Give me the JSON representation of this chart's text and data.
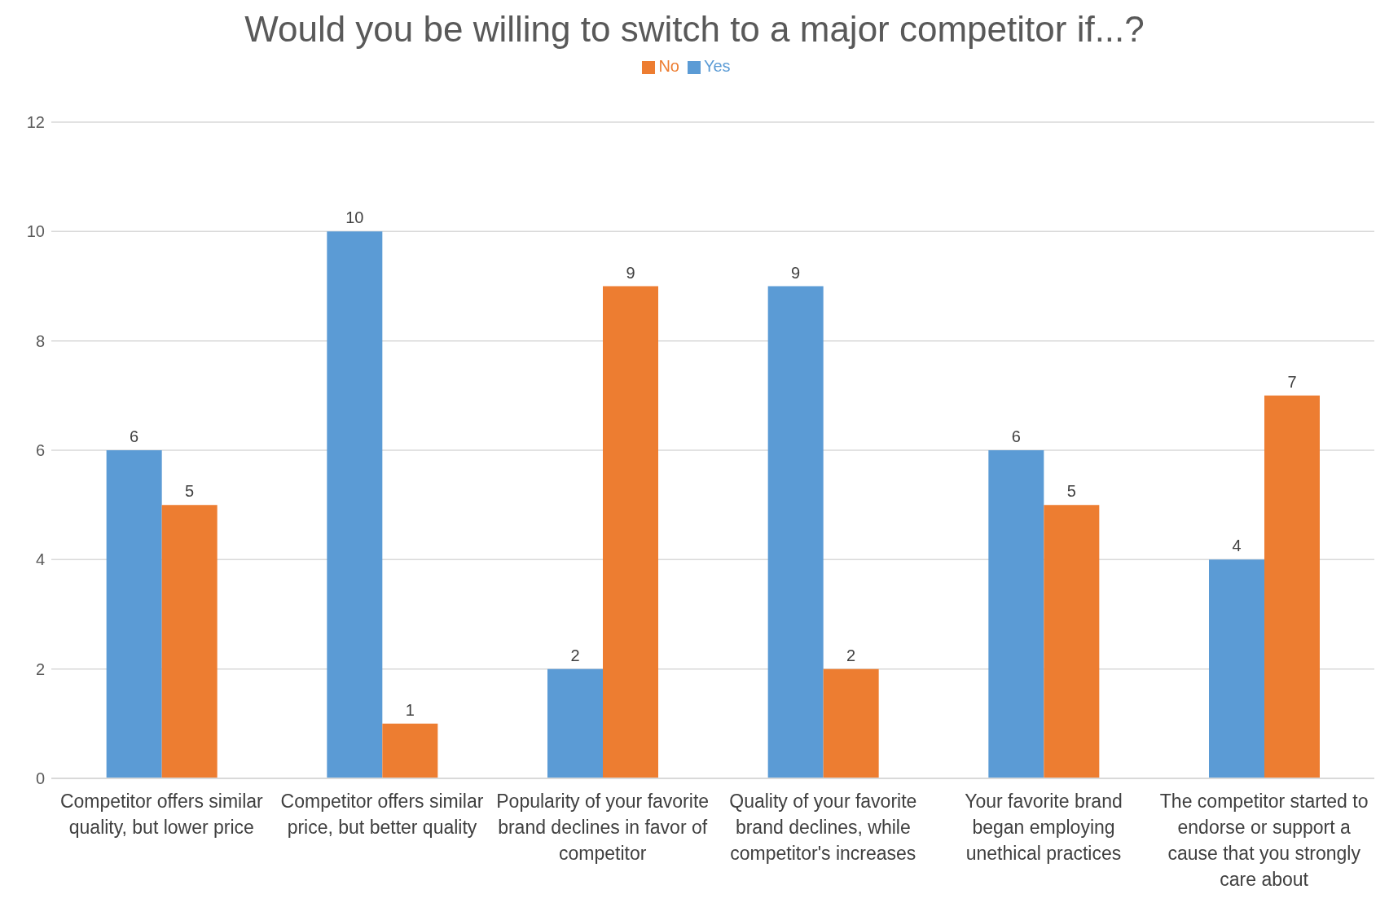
{
  "chart_data": {
    "type": "bar",
    "title": "Would you be willing to switch to a major competitor if...?",
    "categories": [
      "Competitor offers similar quality, but lower price",
      "Competitor offers similar price, but better quality",
      "Popularity of your favorite brand declines in favor of competitor",
      "Quality of your favorite brand declines, while competitor's increases",
      "Your favorite brand began employing unethical practices",
      "The competitor started to endorse or support a cause that you strongly care about"
    ],
    "series": [
      {
        "name": "Yes",
        "color": "#5b9bd5",
        "values": [
          6,
          10,
          2,
          9,
          6,
          4
        ]
      },
      {
        "name": "No",
        "color": "#ed7d31",
        "values": [
          5,
          1,
          9,
          2,
          5,
          7
        ]
      }
    ],
    "ylim": [
      0,
      12
    ],
    "yticks": [
      0,
      2,
      4,
      6,
      8,
      10,
      12
    ],
    "grid": "y",
    "legend": "top",
    "data_labels": true
  }
}
